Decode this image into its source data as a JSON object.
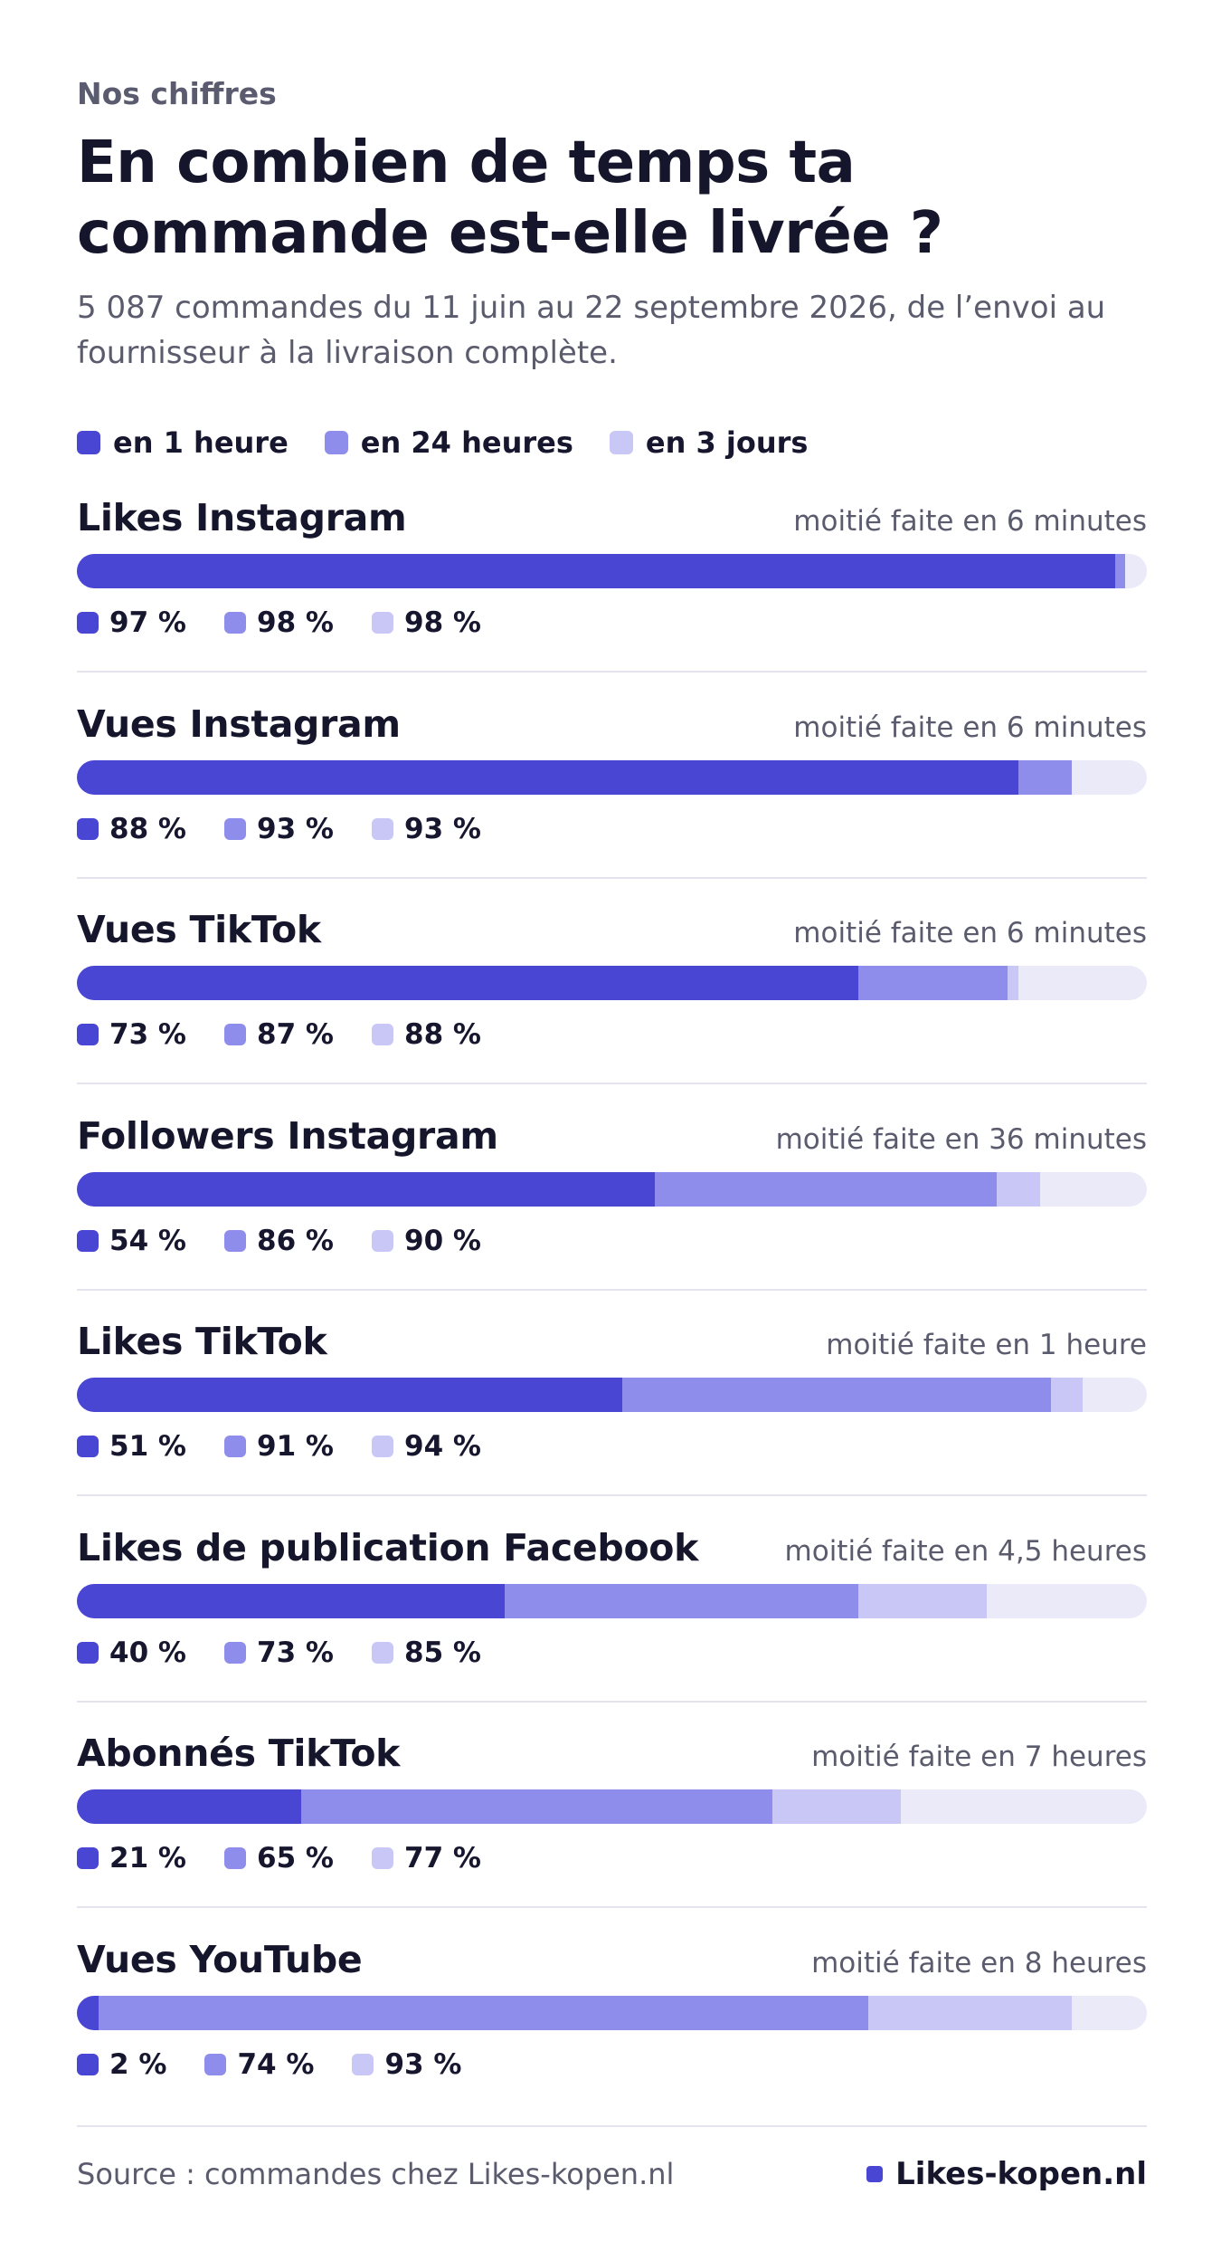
{
  "kicker": "Nos chiffres",
  "title_line1": "En combien de temps ta",
  "title_line2": "commande est-elle livrée ?",
  "subtitle_line1": "5 087 commandes du 11 juin au 22 septembre 2026, de l’envoi au",
  "subtitle_line2": "fournisseur à la livraison complète.",
  "colors": {
    "hour": "#4a46d4",
    "day": "#8f8deb",
    "days3": "#c8c7f5",
    "track": "#ebeaf8",
    "brand": "#4a46d4"
  },
  "legend": [
    {
      "label": "en 1 heure",
      "color": "#4a46d4"
    },
    {
      "label": "en 24 heures",
      "color": "#8f8deb"
    },
    {
      "label": "en 3 jours",
      "color": "#c8c7f5"
    }
  ],
  "chart_data": {
    "type": "bar",
    "orientation": "horizontal-stacked-cumulative",
    "unit": "%",
    "xlim": [
      0,
      100
    ],
    "series_names": [
      "en 1 heure",
      "en 24 heures",
      "en 3 jours"
    ],
    "rows": [
      {
        "name": "Likes Instagram",
        "note": "moitié faite en 6 minutes",
        "values": [
          97,
          98,
          98
        ],
        "labels": [
          "97 %",
          "98 %",
          "98 %"
        ]
      },
      {
        "name": "Vues Instagram",
        "note": "moitié faite en 6 minutes",
        "values": [
          88,
          93,
          93
        ],
        "labels": [
          "88 %",
          "93 %",
          "93 %"
        ]
      },
      {
        "name": "Vues TikTok",
        "note": "moitié faite en 6 minutes",
        "values": [
          73,
          87,
          88
        ],
        "labels": [
          "73 %",
          "87 %",
          "88 %"
        ]
      },
      {
        "name": "Followers Instagram",
        "note": "moitié faite en 36 minutes",
        "values": [
          54,
          86,
          90
        ],
        "labels": [
          "54 %",
          "86 %",
          "90 %"
        ]
      },
      {
        "name": "Likes TikTok",
        "note": "moitié faite en 1 heure",
        "values": [
          51,
          91,
          94
        ],
        "labels": [
          "51 %",
          "91 %",
          "94 %"
        ]
      },
      {
        "name": "Likes de publication Facebook",
        "note": "moitié faite en 4,5 heures",
        "values": [
          40,
          73,
          85
        ],
        "labels": [
          "40 %",
          "73 %",
          "85 %"
        ]
      },
      {
        "name": "Abonnés TikTok",
        "note": "moitié faite en 7 heures",
        "values": [
          21,
          65,
          77
        ],
        "labels": [
          "21 %",
          "65 %",
          "77 %"
        ]
      },
      {
        "name": "Vues YouTube",
        "note": "moitié faite en 8 heures",
        "values": [
          2,
          74,
          93
        ],
        "labels": [
          "2 %",
          "74 %",
          "93 %"
        ]
      }
    ]
  },
  "footer": {
    "source": "Source : commandes chez Likes-kopen.nl",
    "brand": "Likes-kopen.nl"
  }
}
